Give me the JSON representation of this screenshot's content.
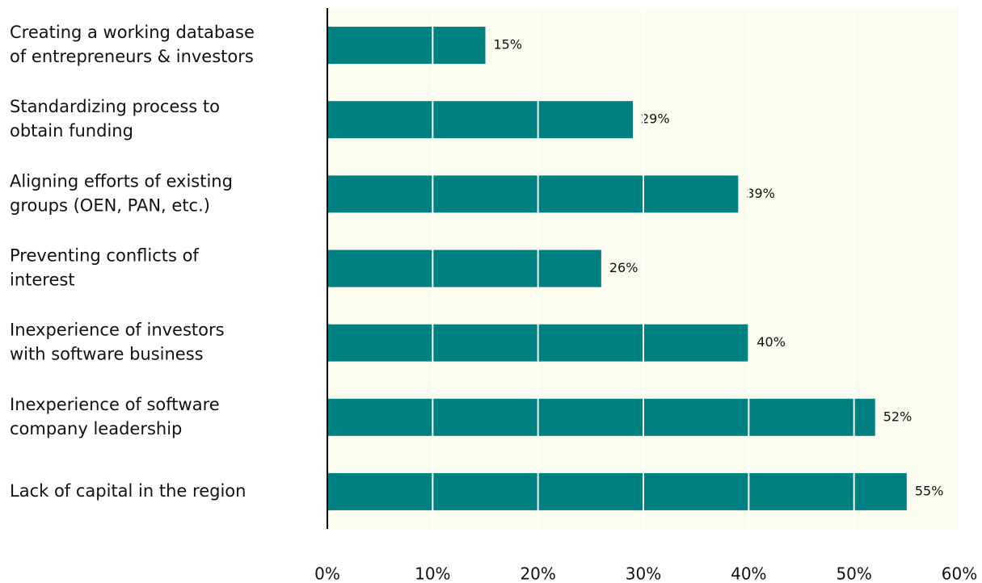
{
  "chart_data": {
    "type": "hbar",
    "categories": [
      [
        "Creating a working database",
        "of entrepreneurs & investors"
      ],
      [
        "Standardizing process to",
        "obtain funding"
      ],
      [
        "Aligning efforts of existing",
        "groups (OEN, PAN, etc.)"
      ],
      [
        "Preventing conflicts of",
        "interest"
      ],
      [
        "Inexperience of investors",
        "with software business"
      ],
      [
        "Inexperience of software",
        "company leadership"
      ],
      [
        "Lack of capital in the region"
      ]
    ],
    "values": [
      15,
      29,
      39,
      26,
      40,
      52,
      55
    ],
    "value_labels": [
      "15%",
      "29%",
      "39%",
      "26%",
      "40%",
      "52%",
      "55%"
    ],
    "color": "#008080",
    "xlim": [
      0,
      60
    ],
    "xticks": [
      {
        "value": 0,
        "label": "0%"
      },
      {
        "value": 10,
        "label": "10%"
      },
      {
        "value": 20,
        "label": "20%"
      },
      {
        "value": 30,
        "label": "30%"
      },
      {
        "value": 40,
        "label": "40%"
      },
      {
        "value": 50,
        "label": "50%"
      },
      {
        "value": 60,
        "label": "60%"
      }
    ],
    "grid": true
  }
}
